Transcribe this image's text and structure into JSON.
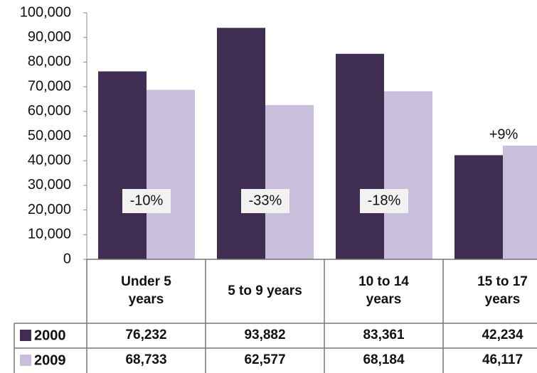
{
  "chart_data": {
    "type": "bar",
    "categories": [
      "Under 5 years",
      "5 to 9 years",
      "10 to 14 years",
      "15 to 17 years"
    ],
    "series": [
      {
        "name": "2000",
        "color": "#3f2d52",
        "values": [
          76232,
          93882,
          83361,
          42234
        ],
        "value_labels": [
          "76,232",
          "93,882",
          "83,361",
          "42,234"
        ]
      },
      {
        "name": "2009",
        "color": "#c9bfdc",
        "values": [
          68733,
          62577,
          68184,
          46117
        ],
        "value_labels": [
          "68,733",
          "62,577",
          "68,184",
          "46,117"
        ]
      }
    ],
    "annotations": [
      "-10%",
      "-33%",
      "-18%",
      "+9%"
    ],
    "ylim": [
      0,
      100000
    ],
    "yticks": [
      0,
      {
        "value": 10000,
        "label": "10,000"
      },
      {
        "value": 20000,
        "label": "20,000"
      },
      {
        "value": 30000,
        "label": "30,000"
      },
      {
        "value": 40000,
        "label": "40,000"
      },
      {
        "value": 50000,
        "label": "50,000"
      },
      {
        "value": 60000,
        "label": "60,000"
      },
      {
        "value": 70000,
        "label": "70,000"
      },
      {
        "value": 80000,
        "label": "80,000"
      },
      {
        "value": 90000,
        "label": "90,000"
      },
      {
        "value": 100000,
        "label": "100,000"
      }
    ]
  }
}
